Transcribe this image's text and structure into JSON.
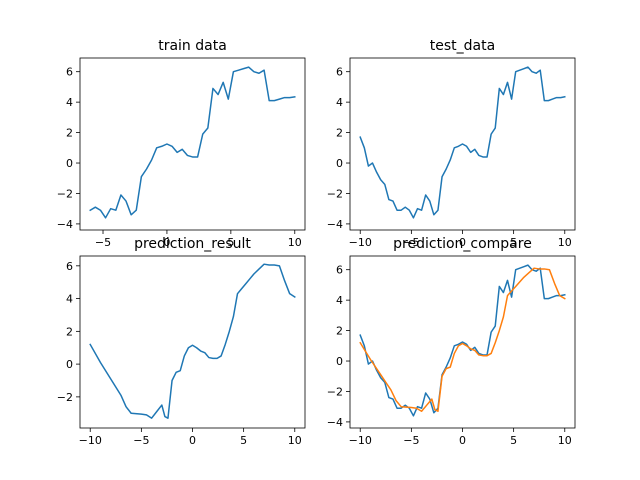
{
  "colors": {
    "series_blue": "#1f77b4",
    "series_orange": "#ff7f0e"
  },
  "chart_data": [
    {
      "type": "line",
      "title": "train data",
      "xlabel": "",
      "ylabel": "",
      "xlim": [
        -6.8,
        10.8
      ],
      "ylim": [
        -4.4,
        6.9
      ],
      "xticks": [
        -5,
        0,
        5,
        10
      ],
      "yticks": [
        -4,
        -2,
        0,
        2,
        4,
        6
      ],
      "grid": false,
      "series": [
        {
          "color": "#1f77b4",
          "x": [
            -6.0,
            -5.6,
            -5.2,
            -4.8,
            -4.4,
            -4.0,
            -3.6,
            -3.2,
            -2.8,
            -2.4,
            -2.0,
            -1.6,
            -1.2,
            -0.8,
            -0.4,
            0.0,
            0.4,
            0.8,
            1.2,
            1.6,
            2.0,
            2.4,
            2.8,
            3.2,
            3.6,
            4.0,
            4.4,
            4.8,
            5.2,
            5.6,
            6.0,
            6.4,
            6.8,
            7.2,
            7.6,
            8.0,
            8.4,
            8.8,
            9.2,
            9.6,
            10.0
          ],
          "y": [
            -3.1,
            -2.9,
            -3.1,
            -3.6,
            -3.0,
            -3.1,
            -2.1,
            -2.5,
            -3.4,
            -3.1,
            -0.9,
            -0.4,
            0.2,
            1.0,
            1.1,
            1.25,
            1.1,
            0.7,
            0.9,
            0.5,
            0.4,
            0.4,
            1.9,
            2.3,
            4.9,
            4.5,
            5.3,
            4.2,
            6.0,
            6.1,
            6.2,
            6.3,
            6.0,
            5.9,
            6.1,
            4.1,
            4.1,
            4.2,
            4.3,
            4.3,
            4.35
          ]
        }
      ]
    },
    {
      "type": "line",
      "title": "test_data",
      "xlabel": "",
      "ylabel": "",
      "xlim": [
        -11.0,
        11.0
      ],
      "ylim": [
        -4.4,
        6.9
      ],
      "xticks": [
        -10,
        -5,
        0,
        5,
        10
      ],
      "yticks": [
        -4,
        -2,
        0,
        2,
        4,
        6
      ],
      "grid": false,
      "series": [
        {
          "color": "#1f77b4",
          "x": [
            -10.0,
            -9.6,
            -9.2,
            -8.8,
            -8.4,
            -8.0,
            -7.6,
            -7.2,
            -6.8,
            -6.4,
            -6.0,
            -5.6,
            -5.2,
            -4.8,
            -4.4,
            -4.0,
            -3.6,
            -3.2,
            -2.8,
            -2.4,
            -2.0,
            -1.6,
            -1.2,
            -0.8,
            -0.4,
            0.0,
            0.4,
            0.8,
            1.2,
            1.6,
            2.0,
            2.4,
            2.8,
            3.2,
            3.6,
            4.0,
            4.4,
            4.8,
            5.2,
            5.6,
            6.0,
            6.4,
            6.8,
            7.2,
            7.6,
            8.0,
            8.4,
            8.8,
            9.2,
            9.6,
            10.0
          ],
          "y": [
            1.7,
            1.0,
            -0.2,
            0.0,
            -0.6,
            -1.1,
            -1.4,
            -2.4,
            -2.5,
            -3.1,
            -3.1,
            -2.9,
            -3.1,
            -3.6,
            -3.0,
            -3.1,
            -2.1,
            -2.5,
            -3.4,
            -3.1,
            -0.9,
            -0.4,
            0.2,
            1.0,
            1.1,
            1.25,
            1.1,
            0.7,
            0.9,
            0.5,
            0.4,
            0.4,
            1.9,
            2.3,
            4.9,
            4.5,
            5.3,
            4.2,
            6.0,
            6.1,
            6.2,
            6.3,
            6.0,
            5.9,
            6.1,
            4.1,
            4.1,
            4.2,
            4.3,
            4.3,
            4.35
          ]
        }
      ]
    },
    {
      "type": "line",
      "title": "prediction_result",
      "xlabel": "",
      "ylabel": "",
      "xlim": [
        -11.0,
        11.0
      ],
      "ylim": [
        -3.9,
        6.6
      ],
      "xticks": [
        -10,
        -5,
        0,
        5,
        10
      ],
      "yticks": [
        -2,
        0,
        2,
        4,
        6
      ],
      "grid": false,
      "series": [
        {
          "color": "#1f77b4",
          "x": [
            -10.0,
            -9.0,
            -8.0,
            -7.0,
            -6.5,
            -6.0,
            -5.0,
            -4.5,
            -4.0,
            -3.5,
            -3.0,
            -2.7,
            -2.4,
            -2.0,
            -1.6,
            -1.2,
            -0.8,
            -0.4,
            0.0,
            0.4,
            0.8,
            1.2,
            1.6,
            2.0,
            2.4,
            2.8,
            3.2,
            3.6,
            4.0,
            4.4,
            4.8,
            5.2,
            5.6,
            6.0,
            6.5,
            7.0,
            7.5,
            8.0,
            8.5,
            9.0,
            9.5,
            10.0
          ],
          "y": [
            1.2,
            0.1,
            -0.9,
            -1.9,
            -2.6,
            -3.0,
            -3.05,
            -3.1,
            -3.3,
            -2.9,
            -2.5,
            -3.2,
            -3.3,
            -1.0,
            -0.5,
            -0.4,
            0.5,
            1.0,
            1.15,
            1.0,
            0.8,
            0.7,
            0.4,
            0.35,
            0.35,
            0.5,
            1.2,
            2.0,
            2.9,
            4.3,
            4.6,
            4.9,
            5.2,
            5.5,
            5.8,
            6.1,
            6.05,
            6.05,
            6.0,
            5.1,
            4.3,
            4.1
          ]
        }
      ]
    },
    {
      "type": "line",
      "title": "prediction_compare",
      "xlabel": "",
      "ylabel": "",
      "xlim": [
        -11.0,
        11.0
      ],
      "ylim": [
        -4.4,
        6.9
      ],
      "xticks": [
        -10,
        -5,
        0,
        5,
        10
      ],
      "yticks": [
        -4,
        -2,
        0,
        2,
        4,
        6
      ],
      "grid": false,
      "series": [
        {
          "color": "#1f77b4",
          "x": [
            -10.0,
            -9.6,
            -9.2,
            -8.8,
            -8.4,
            -8.0,
            -7.6,
            -7.2,
            -6.8,
            -6.4,
            -6.0,
            -5.6,
            -5.2,
            -4.8,
            -4.4,
            -4.0,
            -3.6,
            -3.2,
            -2.8,
            -2.4,
            -2.0,
            -1.6,
            -1.2,
            -0.8,
            -0.4,
            0.0,
            0.4,
            0.8,
            1.2,
            1.6,
            2.0,
            2.4,
            2.8,
            3.2,
            3.6,
            4.0,
            4.4,
            4.8,
            5.2,
            5.6,
            6.0,
            6.4,
            6.8,
            7.2,
            7.6,
            8.0,
            8.4,
            8.8,
            9.2,
            9.6,
            10.0
          ],
          "y": [
            1.7,
            1.0,
            -0.2,
            0.0,
            -0.6,
            -1.1,
            -1.4,
            -2.4,
            -2.5,
            -3.1,
            -3.1,
            -2.9,
            -3.1,
            -3.6,
            -3.0,
            -3.1,
            -2.1,
            -2.5,
            -3.4,
            -3.1,
            -0.9,
            -0.4,
            0.2,
            1.0,
            1.1,
            1.25,
            1.1,
            0.7,
            0.9,
            0.5,
            0.4,
            0.4,
            1.9,
            2.3,
            4.9,
            4.5,
            5.3,
            4.2,
            6.0,
            6.1,
            6.2,
            6.3,
            6.0,
            5.9,
            6.1,
            4.1,
            4.1,
            4.2,
            4.3,
            4.3,
            4.35
          ]
        },
        {
          "color": "#ff7f0e",
          "x": [
            -10.0,
            -9.0,
            -8.0,
            -7.0,
            -6.5,
            -6.0,
            -5.0,
            -4.5,
            -4.0,
            -3.5,
            -3.0,
            -2.7,
            -2.4,
            -2.0,
            -1.6,
            -1.2,
            -0.8,
            -0.4,
            0.0,
            0.4,
            0.8,
            1.2,
            1.6,
            2.0,
            2.4,
            2.8,
            3.2,
            3.6,
            4.0,
            4.4,
            4.8,
            5.2,
            5.6,
            6.0,
            6.5,
            7.0,
            7.5,
            8.0,
            8.5,
            9.0,
            9.5,
            10.0
          ],
          "y": [
            1.2,
            0.1,
            -0.9,
            -1.9,
            -2.6,
            -3.0,
            -3.05,
            -3.1,
            -3.3,
            -2.9,
            -2.5,
            -3.2,
            -3.3,
            -1.0,
            -0.5,
            -0.4,
            0.5,
            1.0,
            1.15,
            1.0,
            0.8,
            0.7,
            0.4,
            0.35,
            0.35,
            0.5,
            1.2,
            2.0,
            2.9,
            4.3,
            4.6,
            4.9,
            5.2,
            5.5,
            5.8,
            6.1,
            6.05,
            6.05,
            6.0,
            5.1,
            4.3,
            4.1
          ]
        }
      ]
    }
  ]
}
